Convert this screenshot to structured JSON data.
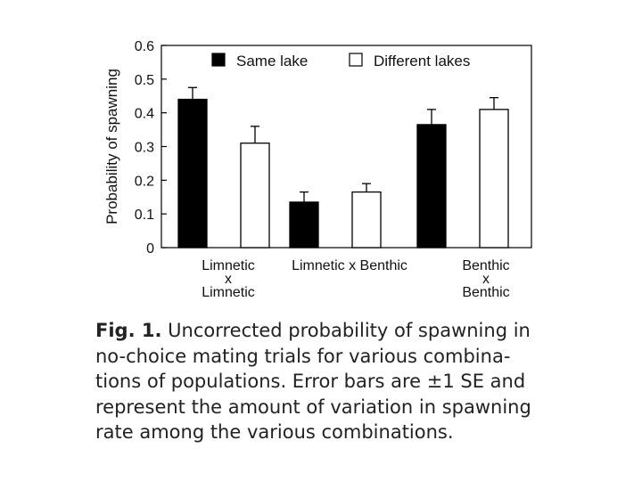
{
  "chart_data": {
    "type": "bar",
    "ylabel": "Probability of spawning",
    "ylim": [
      0,
      0.6
    ],
    "yticks": [
      "0",
      "0.1",
      "0.2",
      "0.3",
      "0.4",
      "0.5",
      "0.6"
    ],
    "legend_position": "top",
    "categories": [
      [
        "Limnetic",
        "x",
        "Limnetic"
      ],
      [
        "Limnetic x Benthic"
      ],
      [
        "Benthic",
        "x",
        "Benthic"
      ]
    ],
    "series": [
      {
        "name": "Same lake",
        "color": "#000000",
        "values": [
          0.44,
          0.135,
          0.365
        ],
        "se": [
          0.035,
          0.03,
          0.045
        ]
      },
      {
        "name": "Different lakes",
        "color": "#ffffff",
        "values": [
          0.31,
          0.165,
          0.41
        ],
        "se": [
          0.05,
          0.025,
          0.035
        ]
      }
    ]
  },
  "caption": {
    "label": "Fig. 1.",
    "lines": [
      "Uncorrected probability of spawning in",
      "no-choice mating trials for various combina-",
      "tions of populations. Error bars are ±1 SE and",
      "represent the amount of variation in spawning",
      "rate among the various combinations."
    ]
  }
}
